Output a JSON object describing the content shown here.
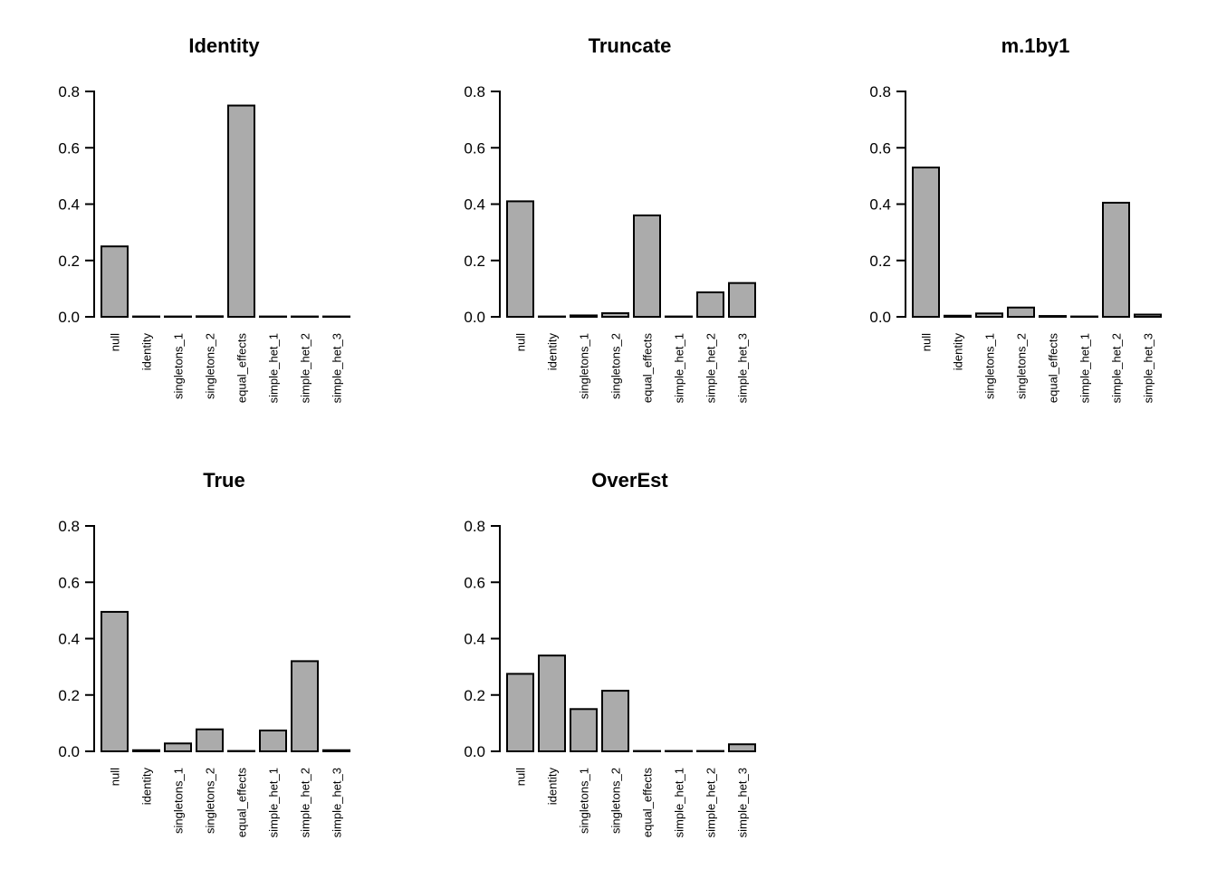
{
  "figure": {
    "background": "#ffffff",
    "grid_layout": {
      "rows": 2,
      "cols": 3,
      "filled_cells": 5
    }
  },
  "colors": {
    "bar_fill": "#ababab",
    "bar_stroke": "#000000",
    "axis": "#000000",
    "text": "#000000"
  },
  "chart_data": [
    {
      "type": "bar",
      "title": "Identity",
      "categories": [
        "null",
        "identity",
        "singletons_1",
        "singletons_2",
        "equal_effects",
        "simple_het_1",
        "simple_het_2",
        "simple_het_3"
      ],
      "values": [
        0.25,
        0.001,
        0.001,
        0.002,
        0.75,
        0.001,
        0.001,
        0.001
      ],
      "xlabel": "",
      "ylabel": "",
      "ylim": [
        0,
        0.8
      ],
      "yticks": [
        0.0,
        0.2,
        0.4,
        0.6,
        0.8
      ],
      "ytick_labels": [
        "0.0",
        "0.2",
        "0.4",
        "0.6",
        "0.8"
      ],
      "grid": false,
      "legend": false,
      "bar_color": "#ababab"
    },
    {
      "type": "bar",
      "title": "Truncate",
      "categories": [
        "null",
        "identity",
        "singletons_1",
        "singletons_2",
        "equal_effects",
        "simple_het_1",
        "simple_het_2",
        "simple_het_3"
      ],
      "values": [
        0.41,
        0.001,
        0.005,
        0.013,
        0.36,
        0.001,
        0.087,
        0.12
      ],
      "xlabel": "",
      "ylabel": "",
      "ylim": [
        0,
        0.8
      ],
      "yticks": [
        0.0,
        0.2,
        0.4,
        0.6,
        0.8
      ],
      "ytick_labels": [
        "0.0",
        "0.2",
        "0.4",
        "0.6",
        "0.8"
      ],
      "grid": false,
      "legend": false,
      "bar_color": "#ababab"
    },
    {
      "type": "bar",
      "title": "m.1by1",
      "categories": [
        "null",
        "identity",
        "singletons_1",
        "singletons_2",
        "equal_effects",
        "simple_het_1",
        "simple_het_2",
        "simple_het_3"
      ],
      "values": [
        0.53,
        0.004,
        0.012,
        0.033,
        0.003,
        0.001,
        0.405,
        0.008
      ],
      "xlabel": "",
      "ylabel": "",
      "ylim": [
        0,
        0.8
      ],
      "yticks": [
        0.0,
        0.2,
        0.4,
        0.6,
        0.8
      ],
      "ytick_labels": [
        "0.0",
        "0.2",
        "0.4",
        "0.6",
        "0.8"
      ],
      "grid": false,
      "legend": false,
      "bar_color": "#ababab"
    },
    {
      "type": "bar",
      "title": "True",
      "categories": [
        "null",
        "identity",
        "singletons_1",
        "singletons_2",
        "equal_effects",
        "simple_het_1",
        "simple_het_2",
        "simple_het_3"
      ],
      "values": [
        0.495,
        0.004,
        0.028,
        0.078,
        0.001,
        0.074,
        0.32,
        0.004
      ],
      "xlabel": "",
      "ylabel": "",
      "ylim": [
        0,
        0.8
      ],
      "yticks": [
        0.0,
        0.2,
        0.4,
        0.6,
        0.8
      ],
      "ytick_labels": [
        "0.0",
        "0.2",
        "0.4",
        "0.6",
        "0.8"
      ],
      "grid": false,
      "legend": false,
      "bar_color": "#ababab"
    },
    {
      "type": "bar",
      "title": "OverEst",
      "categories": [
        "null",
        "identity",
        "singletons_1",
        "singletons_2",
        "equal_effects",
        "simple_het_1",
        "simple_het_2",
        "simple_het_3"
      ],
      "values": [
        0.275,
        0.34,
        0.15,
        0.215,
        0.001,
        0.001,
        0.001,
        0.025
      ],
      "xlabel": "",
      "ylabel": "",
      "ylim": [
        0,
        0.8
      ],
      "yticks": [
        0.0,
        0.2,
        0.4,
        0.6,
        0.8
      ],
      "ytick_labels": [
        "0.0",
        "0.2",
        "0.4",
        "0.6",
        "0.8"
      ],
      "grid": false,
      "legend": false,
      "bar_color": "#ababab"
    }
  ]
}
